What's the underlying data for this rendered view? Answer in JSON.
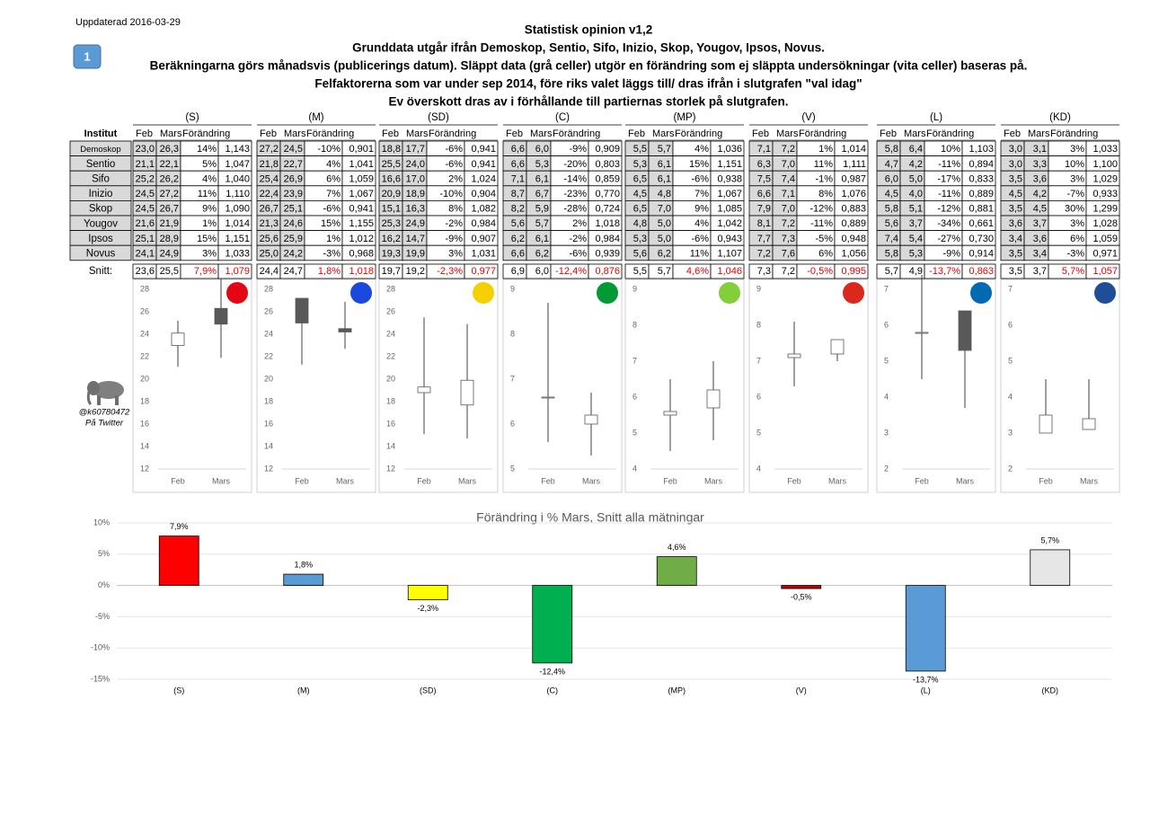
{
  "header": {
    "updated": "Uppdaterad 2016-03-29",
    "badge": "1",
    "title_lines": [
      "Statistisk opinion v1,2",
      "Grunddata utgår ifrån Demoskop, Sentio,  Sifo, Inizio, Skop, Yougov, Ipsos, Novus.",
      "Beräkningarna görs månadsvis (publicerings datum). Släppt data (grå celler) utgör en förändring som ej släppta undersökningar  (vita celler) baseras på.",
      "Felfaktorerna som var under sep 2014, före riks valet läggs till/ dras ifrån i slutgrafen \"val idag\"",
      "Ev överskott dras av i förhållande till partiernas storlek på slutgrafen."
    ]
  },
  "table": {
    "institute_header": "Institut",
    "snitt_label": "Snitt:",
    "columns": [
      "Feb",
      "Mars",
      "Förändring"
    ],
    "institutes": [
      "Demoskop",
      "Sentio",
      "Sifo",
      "Inizio",
      "Skop",
      "Yougov",
      "Ipsos",
      "Novus"
    ]
  },
  "parties": [
    {
      "name": "(S)",
      "rows": [
        [
          "23,0",
          "26,3",
          "14%",
          "1,143"
        ],
        [
          "21,1",
          "22,1",
          "5%",
          "1,047"
        ],
        [
          "25,2",
          "26,2",
          "4%",
          "1,040"
        ],
        [
          "24,5",
          "27,2",
          "11%",
          "1,110"
        ],
        [
          "24,5",
          "26,7",
          "9%",
          "1,090"
        ],
        [
          "21,6",
          "21,9",
          "1%",
          "1,014"
        ],
        [
          "25,1",
          "28,9",
          "15%",
          "1,151"
        ],
        [
          "24,1",
          "24,9",
          "3%",
          "1,033"
        ]
      ],
      "snitt": [
        "23,6",
        "25,5",
        "7,9%",
        "1,079"
      ],
      "chart": {
        "ylim": [
          12,
          28
        ],
        "yticks": [
          12,
          14,
          16,
          18,
          20,
          22,
          24,
          26,
          28
        ],
        "categories": [
          "Feb",
          "Mars"
        ],
        "candles": [
          {
            "open": 23.0,
            "close": 24.1,
            "low": 21.1,
            "high": 25.2
          },
          {
            "open": 26.3,
            "close": 24.9,
            "low": 21.9,
            "high": 28.9
          }
        ]
      }
    },
    {
      "name": "(M)",
      "rows": [
        [
          "27,2",
          "24,5",
          "-10%",
          "0,901"
        ],
        [
          "21,8",
          "22,7",
          "4%",
          "1,041"
        ],
        [
          "25,4",
          "26,9",
          "6%",
          "1,059"
        ],
        [
          "22,4",
          "23,9",
          "7%",
          "1,067"
        ],
        [
          "26,7",
          "25,1",
          "-6%",
          "0,941"
        ],
        [
          "21,3",
          "24,6",
          "15%",
          "1,155"
        ],
        [
          "25,6",
          "25,9",
          "1%",
          "1,012"
        ],
        [
          "25,0",
          "24,2",
          "-3%",
          "0,968"
        ]
      ],
      "snitt": [
        "24,4",
        "24,7",
        "1,8%",
        "1,018"
      ],
      "chart": {
        "ylim": [
          12,
          28
        ],
        "yticks": [
          12,
          14,
          16,
          18,
          20,
          22,
          24,
          26,
          28
        ],
        "categories": [
          "Feb",
          "Mars"
        ],
        "candles": [
          {
            "open": 27.2,
            "close": 25.0,
            "low": 21.3,
            "high": 27.2
          },
          {
            "open": 24.5,
            "close": 24.2,
            "low": 22.7,
            "high": 26.9
          }
        ]
      }
    },
    {
      "name": "(SD)",
      "rows": [
        [
          "18,8",
          "17,7",
          "-6%",
          "0,941"
        ],
        [
          "25,5",
          "24,0",
          "-6%",
          "0,941"
        ],
        [
          "16,6",
          "17,0",
          "2%",
          "1,024"
        ],
        [
          "20,9",
          "18,9",
          "-10%",
          "0,904"
        ],
        [
          "15,1",
          "16,3",
          "8%",
          "1,082"
        ],
        [
          "25,3",
          "24,9",
          "-2%",
          "0,984"
        ],
        [
          "16,2",
          "14,7",
          "-9%",
          "0,907"
        ],
        [
          "19,3",
          "19,9",
          "3%",
          "1,031"
        ]
      ],
      "snitt": [
        "19,7",
        "19,2",
        "-2,3%",
        "0,977"
      ],
      "chart": {
        "ylim": [
          12,
          28
        ],
        "yticks": [
          12,
          14,
          16,
          18,
          20,
          22,
          24,
          26,
          28
        ],
        "categories": [
          "Feb",
          "Mars"
        ],
        "candles": [
          {
            "open": 18.8,
            "close": 19.3,
            "low": 15.1,
            "high": 25.5
          },
          {
            "open": 17.7,
            "close": 19.9,
            "low": 14.7,
            "high": 24.9
          }
        ]
      }
    },
    {
      "name": "(C)",
      "rows": [
        [
          "6,6",
          "6,0",
          "-9%",
          "0,909"
        ],
        [
          "6,6",
          "5,3",
          "-20%",
          "0,803"
        ],
        [
          "7,1",
          "6,1",
          "-14%",
          "0,859"
        ],
        [
          "8,7",
          "6,7",
          "-23%",
          "0,770"
        ],
        [
          "8,2",
          "5,9",
          "-28%",
          "0,724"
        ],
        [
          "5,6",
          "5,7",
          "2%",
          "1,018"
        ],
        [
          "6,2",
          "6,1",
          "-2%",
          "0,984"
        ],
        [
          "6,6",
          "6,2",
          "-6%",
          "0,939"
        ]
      ],
      "snitt": [
        "6,9",
        "6,0",
        "-12,4%",
        "0,876"
      ],
      "chart": {
        "ylim": [
          5,
          9
        ],
        "yticks": [
          5,
          6,
          7,
          8,
          9
        ],
        "categories": [
          "Feb",
          "Mars"
        ],
        "candles": [
          {
            "open": 6.6,
            "close": 6.6,
            "low": 5.6,
            "high": 8.7
          },
          {
            "open": 6.0,
            "close": 6.2,
            "low": 5.3,
            "high": 6.7
          }
        ]
      }
    },
    {
      "name": "(MP)",
      "rows": [
        [
          "5,5",
          "5,7",
          "4%",
          "1,036"
        ],
        [
          "5,3",
          "6,1",
          "15%",
          "1,151"
        ],
        [
          "6,5",
          "6,1",
          "-6%",
          "0,938"
        ],
        [
          "4,5",
          "4,8",
          "7%",
          "1,067"
        ],
        [
          "6,5",
          "7,0",
          "9%",
          "1,085"
        ],
        [
          "4,8",
          "5,0",
          "4%",
          "1,042"
        ],
        [
          "5,3",
          "5,0",
          "-6%",
          "0,943"
        ],
        [
          "5,6",
          "6,2",
          "11%",
          "1,107"
        ]
      ],
      "snitt": [
        "5,5",
        "5,7",
        "4,6%",
        "1,046"
      ],
      "chart": {
        "ylim": [
          4,
          9
        ],
        "yticks": [
          4,
          5,
          6,
          7,
          8,
          9
        ],
        "categories": [
          "Feb",
          "Mars"
        ],
        "candles": [
          {
            "open": 5.5,
            "close": 5.6,
            "low": 4.5,
            "high": 6.5
          },
          {
            "open": 5.7,
            "close": 6.2,
            "low": 4.8,
            "high": 7.0
          }
        ]
      }
    },
    {
      "name": "(V)",
      "rows": [
        [
          "7,1",
          "7,2",
          "1%",
          "1,014"
        ],
        [
          "6,3",
          "7,0",
          "11%",
          "1,111"
        ],
        [
          "7,5",
          "7,4",
          "-1%",
          "0,987"
        ],
        [
          "6,6",
          "7,1",
          "8%",
          "1,076"
        ],
        [
          "7,9",
          "7,0",
          "-12%",
          "0,883"
        ],
        [
          "8,1",
          "7,2",
          "-11%",
          "0,889"
        ],
        [
          "7,7",
          "7,3",
          "-5%",
          "0,948"
        ],
        [
          "7,2",
          "7,6",
          "6%",
          "1,056"
        ]
      ],
      "snitt": [
        "7,3",
        "7,2",
        "-0,5%",
        "0,995"
      ],
      "chart": {
        "ylim": [
          4,
          9
        ],
        "yticks": [
          4,
          5,
          6,
          7,
          8,
          9
        ],
        "categories": [
          "Feb",
          "Mars"
        ],
        "candles": [
          {
            "open": 7.1,
            "close": 7.2,
            "low": 6.3,
            "high": 8.1
          },
          {
            "open": 7.2,
            "close": 7.6,
            "low": 7.0,
            "high": 7.6
          }
        ]
      }
    },
    {
      "name": "(L)",
      "rows": [
        [
          "5,8",
          "6,4",
          "10%",
          "1,103"
        ],
        [
          "4,7",
          "4,2",
          "-11%",
          "0,894"
        ],
        [
          "6,0",
          "5,0",
          "-17%",
          "0,833"
        ],
        [
          "4,5",
          "4,0",
          "-11%",
          "0,889"
        ],
        [
          "5,8",
          "5,1",
          "-12%",
          "0,881"
        ],
        [
          "5,6",
          "3,7",
          "-34%",
          "0,661"
        ],
        [
          "7,4",
          "5,4",
          "-27%",
          "0,730"
        ],
        [
          "5,8",
          "5,3",
          "-9%",
          "0,914"
        ]
      ],
      "snitt": [
        "5,7",
        "4,9",
        "-13,7%",
        "0,863"
      ],
      "chart": {
        "ylim": [
          2,
          7
        ],
        "yticks": [
          2,
          3,
          4,
          5,
          6,
          7
        ],
        "categories": [
          "Feb",
          "Mars"
        ],
        "candles": [
          {
            "open": 5.8,
            "close": 5.8,
            "low": 4.5,
            "high": 7.4
          },
          {
            "open": 6.4,
            "close": 5.3,
            "low": 3.7,
            "high": 6.4
          }
        ]
      }
    },
    {
      "name": "(KD)",
      "rows": [
        [
          "3,0",
          "3,1",
          "3%",
          "1,033"
        ],
        [
          "3,0",
          "3,3",
          "10%",
          "1,100"
        ],
        [
          "3,5",
          "3,6",
          "3%",
          "1,029"
        ],
        [
          "4,5",
          "4,2",
          "-7%",
          "0,933"
        ],
        [
          "3,5",
          "4,5",
          "30%",
          "1,299"
        ],
        [
          "3,6",
          "3,7",
          "3%",
          "1,028"
        ],
        [
          "3,4",
          "3,6",
          "6%",
          "1,059"
        ],
        [
          "3,5",
          "3,4",
          "-3%",
          "0,971"
        ]
      ],
      "snitt": [
        "3,5",
        "3,7",
        "5,7%",
        "1,057"
      ],
      "chart": {
        "ylim": [
          2,
          7
        ],
        "yticks": [
          2,
          3,
          4,
          5,
          6,
          7
        ],
        "categories": [
          "Feb",
          "Mars"
        ],
        "candles": [
          {
            "open": 3.0,
            "close": 3.5,
            "low": 3.0,
            "high": 4.5
          },
          {
            "open": 3.1,
            "close": 3.4,
            "low": 3.1,
            "high": 4.5
          }
        ]
      }
    }
  ],
  "twitter": {
    "handle": "@k60780472",
    "label": "På Twitter"
  },
  "bar_chart": {
    "type": "bar",
    "title": "Förändring i % Mars, Snitt alla mätningar",
    "categories": [
      "(S)",
      "(M)",
      "(SD)",
      "(C)",
      "(MP)",
      "(V)",
      "(L)",
      "(KD)"
    ],
    "values": [
      7.9,
      1.8,
      -2.3,
      -12.4,
      4.6,
      -0.5,
      -13.7,
      5.7
    ],
    "value_labels": [
      "7,9%",
      "1,8%",
      "-2,3%",
      "-12,4%",
      "4,6%",
      "-0,5%",
      "-13,7%",
      "5,7%"
    ],
    "colors": [
      "#ff0000",
      "#5b9bd5",
      "#ffff00",
      "#00b050",
      "#70ad47",
      "#c00000",
      "#5b9bd5",
      "#e7e6e6"
    ],
    "ylim": [
      -15,
      10
    ],
    "yticks": [
      {
        "value": 10,
        "label": "10%"
      },
      {
        "value": 5,
        "label": "5%"
      },
      {
        "value": 0,
        "label": "0%"
      },
      {
        "value": -5,
        "label": "-5%"
      },
      {
        "value": -10,
        "label": "-10%"
      },
      {
        "value": -15,
        "label": "-15%"
      }
    ],
    "grid": true
  }
}
